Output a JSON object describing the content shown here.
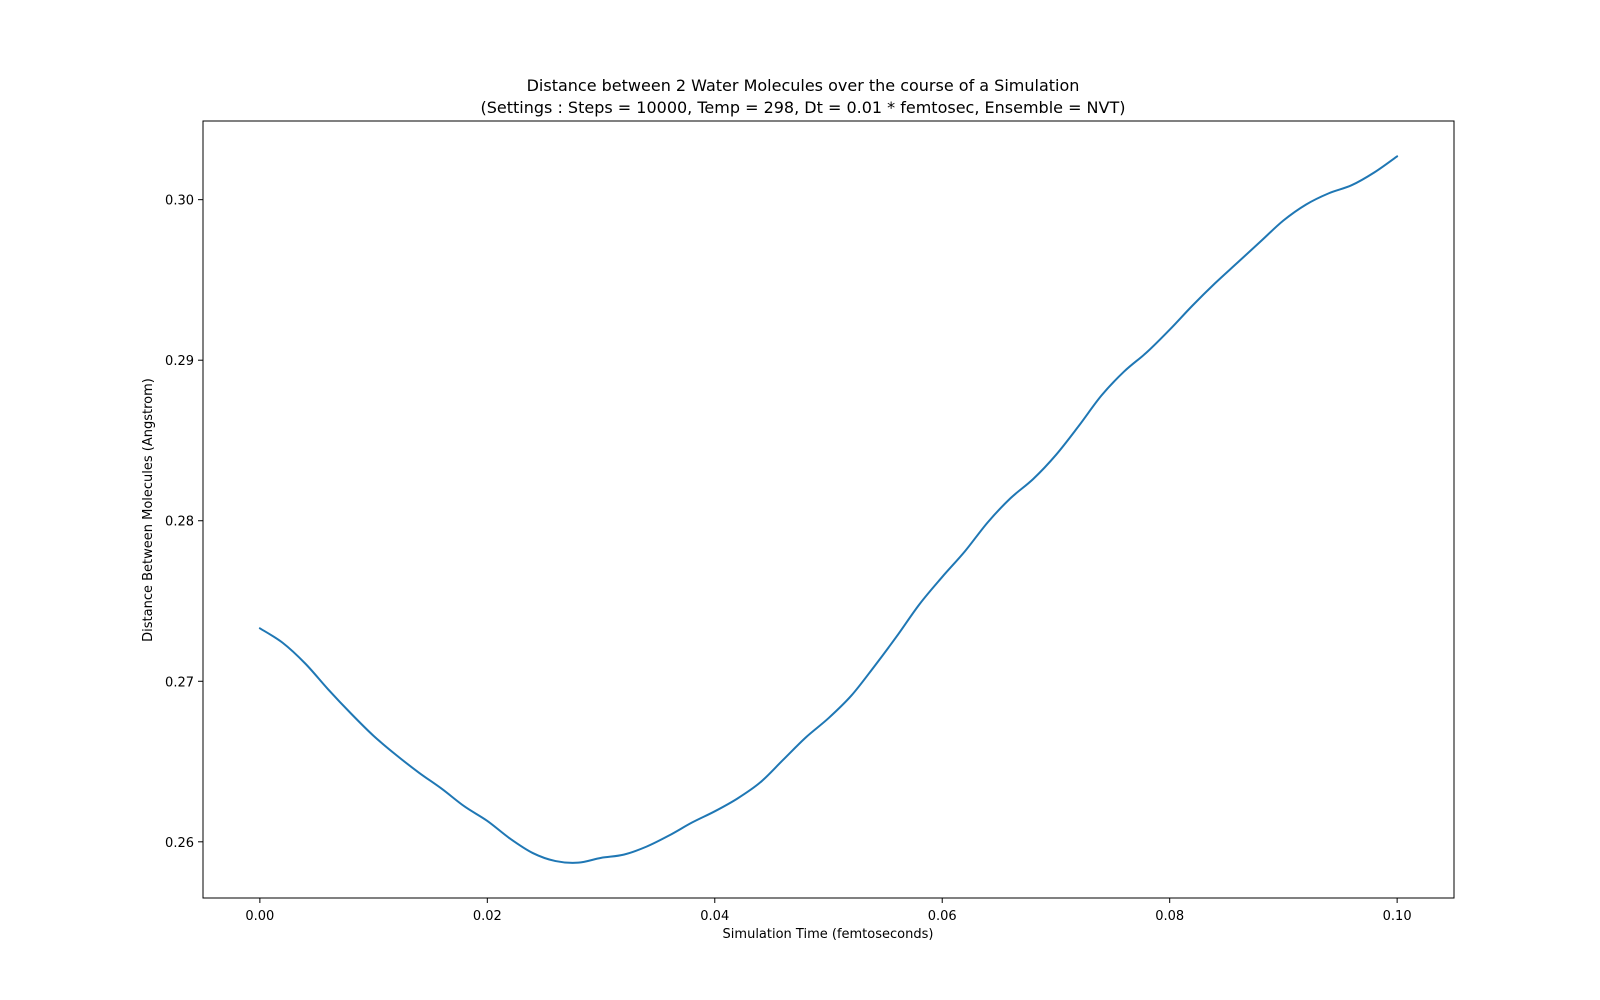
{
  "chart_data": {
    "type": "line",
    "title_line1": "Distance between 2 Water Molecules over the course of a Simulation",
    "title_line2": "(Settings : Steps = 10000, Temp = 298, Dt = 0.01 * femtosec, Ensemble = NVT)",
    "xlabel": "Simulation Time (femtoseconds)",
    "ylabel": "Distance Between Molecules (Angstrom)",
    "xlim": [
      -0.005,
      0.105
    ],
    "ylim": [
      0.2565,
      0.3049
    ],
    "x_ticks": [
      {
        "value": 0.0,
        "label": "0.00"
      },
      {
        "value": 0.02,
        "label": "0.02"
      },
      {
        "value": 0.04,
        "label": "0.04"
      },
      {
        "value": 0.06,
        "label": "0.06"
      },
      {
        "value": 0.08,
        "label": "0.08"
      },
      {
        "value": 0.1,
        "label": "0.10"
      }
    ],
    "y_ticks": [
      {
        "value": 0.26,
        "label": "0.26"
      },
      {
        "value": 0.27,
        "label": "0.27"
      },
      {
        "value": 0.28,
        "label": "0.28"
      },
      {
        "value": 0.29,
        "label": "0.29"
      },
      {
        "value": 0.3,
        "label": "0.30"
      }
    ],
    "grid": false,
    "legend": "none",
    "series": [
      {
        "color": "#1f77b4",
        "x": [
          0.0,
          0.002,
          0.004,
          0.006,
          0.008,
          0.01,
          0.012,
          0.014,
          0.016,
          0.018,
          0.02,
          0.022,
          0.024,
          0.026,
          0.028,
          0.03,
          0.032,
          0.034,
          0.036,
          0.038,
          0.04,
          0.042,
          0.044,
          0.046,
          0.048,
          0.05,
          0.052,
          0.054,
          0.056,
          0.058,
          0.06,
          0.062,
          0.064,
          0.066,
          0.068,
          0.07,
          0.072,
          0.074,
          0.076,
          0.078,
          0.08,
          0.082,
          0.084,
          0.086,
          0.088,
          0.09,
          0.092,
          0.094,
          0.096,
          0.098,
          0.1
        ],
        "y": [
          0.2733,
          0.2724,
          0.2711,
          0.2695,
          0.268,
          0.2666,
          0.2654,
          0.2643,
          0.2633,
          0.2622,
          0.2613,
          0.2602,
          0.2593,
          0.2588,
          0.2587,
          0.259,
          0.2592,
          0.2597,
          0.2604,
          0.2612,
          0.2619,
          0.2627,
          0.2637,
          0.2651,
          0.2665,
          0.2677,
          0.2691,
          0.2709,
          0.2728,
          0.2748,
          0.2765,
          0.2781,
          0.2799,
          0.2814,
          0.2826,
          0.2841,
          0.2859,
          0.2878,
          0.2893,
          0.2905,
          0.2919,
          0.2934,
          0.2948,
          0.2961,
          0.2974,
          0.2987,
          0.2997,
          0.3004,
          0.3009,
          0.3017,
          0.3027
        ]
      }
    ]
  }
}
